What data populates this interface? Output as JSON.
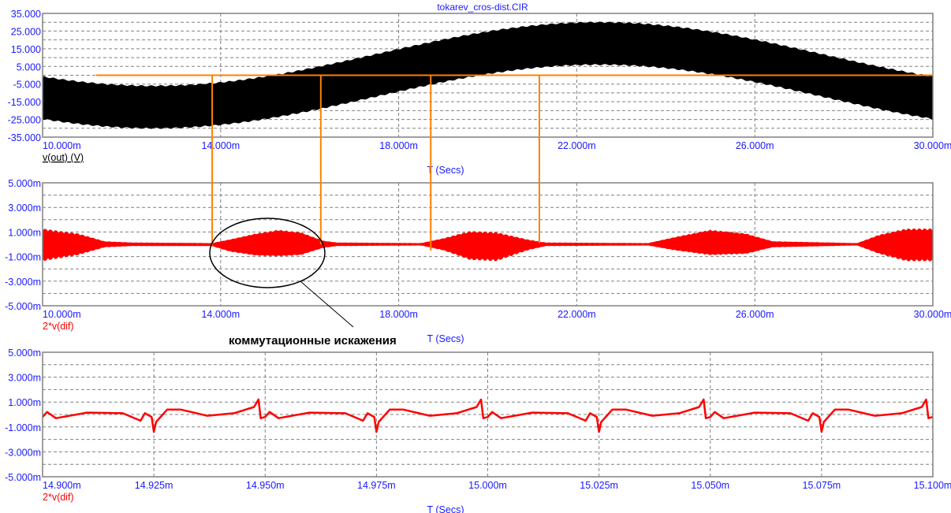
{
  "title": "tokarev_cros-dist.CIR",
  "annotation": "коммутационные искажения",
  "colors": {
    "axis_text": "#1a1aff",
    "vout": "#000000",
    "dif": "#ff0000",
    "cursor": "#ff8000",
    "grid": "#808080"
  },
  "chart_data": [
    {
      "type": "line",
      "series_label": "v(out) (V)",
      "xlabel": "T (Secs)",
      "xlim": [
        10,
        30
      ],
      "x_unit": "ms",
      "ylim": [
        -35,
        35
      ],
      "x_ticks": [
        "10.000m",
        "14.000m",
        "18.000m",
        "22.000m",
        "26.000m",
        "30.000m"
      ],
      "x_tick_values": [
        10,
        14,
        18,
        22,
        26,
        30
      ],
      "y_ticks": [
        "35.000",
        "25.000",
        "15.000",
        "5.000",
        "-5.000",
        "-15.000",
        "-25.000",
        "-35.000"
      ],
      "y_tick_values": [
        35,
        25,
        15,
        5,
        -5,
        -15,
        -25,
        -35
      ],
      "grid": true,
      "signal": {
        "frequency_hz": 50,
        "amplitude": 18,
        "first_minimum_ms": 12.5,
        "ripple_half_band": 12
      },
      "cursors": {
        "horizontal_y": 0,
        "horizontal_from_ms": 11.2,
        "vertical_ms": [
          13.81,
          16.25,
          18.72,
          21.16
        ]
      }
    },
    {
      "type": "area",
      "series_label": "2*v(dif)",
      "xlabel": "T (Secs)",
      "xlim": [
        10,
        30
      ],
      "x_unit": "ms",
      "ylim": [
        -5,
        5
      ],
      "y_unit": "mV",
      "x_ticks": [
        "10.000m",
        "14.000m",
        "18.000m",
        "22.000m",
        "26.000m",
        "30.000m"
      ],
      "x_tick_values": [
        10,
        14,
        18,
        22,
        26,
        30
      ],
      "y_ticks": [
        "5.000m",
        "3.000m",
        "1.000m",
        "-1.000m",
        "-3.000m",
        "-5.000m"
      ],
      "y_tick_values": [
        5,
        3,
        1,
        -1,
        -3,
        -5
      ],
      "grid": true,
      "envelope": [
        [
          10,
          1.3,
          -1.4
        ],
        [
          10.8,
          0.9,
          -0.9
        ],
        [
          11.4,
          0.25,
          -0.25
        ],
        [
          12,
          0.15,
          -0.15
        ],
        [
          13.8,
          0.1,
          -0.15
        ],
        [
          14.2,
          0.4,
          -0.6
        ],
        [
          14.8,
          0.9,
          -0.95
        ],
        [
          15.3,
          1.2,
          -1.0
        ],
        [
          15.8,
          1.0,
          -0.9
        ],
        [
          16.3,
          0.3,
          -0.3
        ],
        [
          16.6,
          0.15,
          -0.15
        ],
        [
          18.5,
          0.1,
          -0.1
        ],
        [
          19.0,
          0.5,
          -0.5
        ],
        [
          19.6,
          1.1,
          -1.3
        ],
        [
          20.2,
          1.0,
          -1.4
        ],
        [
          20.9,
          0.4,
          -0.5
        ],
        [
          21.3,
          0.15,
          -0.15
        ],
        [
          23.6,
          0.1,
          -0.1
        ],
        [
          24.2,
          0.6,
          -0.5
        ],
        [
          25.0,
          1.2,
          -0.9
        ],
        [
          25.8,
          0.9,
          -0.8
        ],
        [
          26.4,
          0.25,
          -0.25
        ],
        [
          28.3,
          0.1,
          -0.1
        ],
        [
          28.8,
          0.8,
          -0.8
        ],
        [
          29.4,
          1.3,
          -1.4
        ],
        [
          30,
          1.3,
          -1.4
        ]
      ]
    },
    {
      "type": "line",
      "series_label": "2*v(dif)",
      "xlabel": "T (Secs)",
      "xlim": [
        14.9,
        15.1
      ],
      "x_unit": "ms",
      "ylim": [
        -5,
        5
      ],
      "y_unit": "mV",
      "x_ticks": [
        "14.900m",
        "14.925m",
        "14.950m",
        "14.975m",
        "15.000m",
        "15.025m",
        "15.050m",
        "15.075m",
        "15.100m"
      ],
      "x_tick_values": [
        14.9,
        14.925,
        14.95,
        14.975,
        15.0,
        15.025,
        15.05,
        15.075,
        15.1
      ],
      "y_ticks": [
        "5.000m",
        "3.000m",
        "1.000m",
        "-1.000m",
        "-3.000m",
        "-5.000m"
      ],
      "y_tick_values": [
        5,
        3,
        1,
        -1,
        -3,
        -5
      ],
      "grid": true,
      "x": [
        14.9,
        14.901,
        14.903,
        14.91,
        14.918,
        14.922,
        14.923,
        14.9245,
        14.925,
        14.9255,
        14.928,
        14.931,
        14.937,
        14.943,
        14.9475,
        14.9485,
        14.949,
        14.95,
        14.951,
        14.953,
        14.96,
        14.968,
        14.972,
        14.973,
        14.9745,
        14.975,
        14.9755,
        14.978,
        14.981,
        14.987,
        14.993,
        14.9975,
        14.9985,
        14.999,
        15.0,
        15.001,
        15.003,
        15.01,
        15.018,
        15.022,
        15.023,
        15.0245,
        15.025,
        15.0255,
        15.028,
        15.031,
        15.037,
        15.043,
        15.0475,
        15.0485,
        15.049,
        15.05,
        15.051,
        15.053,
        15.06,
        15.068,
        15.072,
        15.073,
        15.0745,
        15.075,
        15.0755,
        15.078,
        15.081,
        15.087,
        15.093,
        15.0975,
        15.0985,
        15.099,
        15.1
      ],
      "y": [
        -0.2,
        0.2,
        -0.3,
        0.15,
        0.1,
        -0.5,
        0.1,
        -0.2,
        -1.4,
        -0.6,
        0.4,
        0.4,
        -0.1,
        0.1,
        0.6,
        1.2,
        -0.3,
        -0.2,
        0.2,
        -0.3,
        0.15,
        0.1,
        -0.5,
        0.1,
        -0.2,
        -1.4,
        -0.6,
        0.4,
        0.4,
        -0.1,
        0.1,
        0.6,
        1.2,
        -0.3,
        -0.2,
        0.2,
        -0.3,
        0.15,
        0.1,
        -0.5,
        0.1,
        -0.2,
        -1.4,
        -0.6,
        0.4,
        0.4,
        -0.1,
        0.1,
        0.6,
        1.2,
        -0.3,
        -0.2,
        0.2,
        -0.3,
        0.15,
        0.1,
        -0.5,
        0.1,
        -0.2,
        -1.4,
        -0.6,
        0.4,
        0.4,
        -0.1,
        0.1,
        0.6,
        1.2,
        -0.3,
        -0.2
      ]
    }
  ]
}
